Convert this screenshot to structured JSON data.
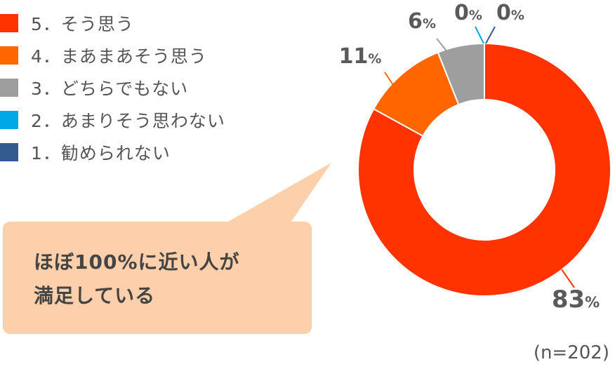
{
  "chart_data": {
    "type": "donut",
    "series": [
      {
        "label": "5．そう思う",
        "value": 83,
        "color": "#ff3300"
      },
      {
        "label": "4．まあまあそう思う",
        "value": 11,
        "color": "#ff6600"
      },
      {
        "label": "3．どちらでもない",
        "value": 6,
        "color": "#9e9e9e"
      },
      {
        "label": "2．あまりそう思わない",
        "value": 0,
        "color": "#00a8e8"
      },
      {
        "label": "1．勧められない",
        "value": 0,
        "color": "#335b8f"
      }
    ],
    "unit": "%",
    "note": "(n=202)"
  },
  "callout": {
    "line1": "ほぼ100%に近い人が",
    "line2": "満足している",
    "color": "#fdcfaa"
  }
}
